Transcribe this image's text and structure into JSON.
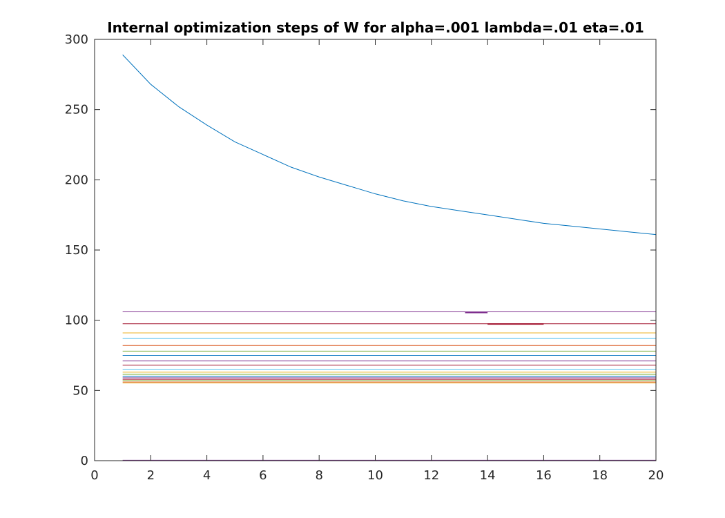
{
  "chart_data": {
    "type": "line",
    "title": "Internal optimization steps of W for alpha=.001 lambda=.01 eta=.01",
    "xlabel": "",
    "ylabel": "",
    "xlim": [
      0,
      20
    ],
    "ylim": [
      0,
      300
    ],
    "xticks": [
      0,
      2,
      4,
      6,
      8,
      10,
      12,
      14,
      16,
      18,
      20
    ],
    "yticks": [
      0,
      50,
      100,
      150,
      200,
      250,
      300
    ],
    "xtick_labels": [
      "0",
      "2",
      "4",
      "6",
      "8",
      "10",
      "12",
      "14",
      "16",
      "18",
      "20"
    ],
    "ytick_labels": [
      "0",
      "50",
      "100",
      "150",
      "200",
      "250",
      "300"
    ],
    "grid": false,
    "legend": "none",
    "x": [
      1,
      2,
      3,
      4,
      5,
      6,
      7,
      8,
      9,
      10,
      11,
      12,
      13,
      14,
      15,
      16,
      17,
      18,
      19,
      20
    ],
    "series": [
      {
        "color": "#0072bd",
        "values": [
          289,
          268,
          252,
          239,
          227,
          218,
          209,
          202,
          196,
          190,
          185,
          181,
          178,
          175,
          172,
          169,
          167,
          165,
          163,
          161
        ]
      },
      {
        "color": "#7e2f8e",
        "values": [
          106,
          106,
          106,
          106,
          106,
          106,
          106,
          106,
          106,
          106,
          106,
          106,
          106,
          106,
          106,
          106,
          106,
          106,
          106,
          106
        ]
      },
      {
        "color": "#a2142f",
        "values": [
          97.5,
          97.5,
          97.5,
          97.5,
          97.5,
          97.5,
          97.5,
          97.5,
          97.5,
          97.5,
          97.5,
          97.5,
          97.5,
          97.5,
          97.5,
          97.5,
          97.5,
          97.5,
          97.5,
          97.5
        ]
      },
      {
        "color": "#edb120",
        "values": [
          91,
          91,
          91,
          91,
          91,
          91,
          91,
          91,
          91,
          91,
          91,
          91,
          91,
          91,
          91,
          91,
          91,
          91,
          91,
          91
        ]
      },
      {
        "color": "#4dbeee",
        "values": [
          87,
          87,
          87,
          87,
          87,
          87,
          87,
          87,
          87,
          87,
          87,
          87,
          87,
          87,
          87,
          87,
          87,
          87,
          87,
          87
        ]
      },
      {
        "color": "#d95319",
        "values": [
          82,
          82,
          82,
          82,
          82,
          82,
          82,
          82,
          82,
          82,
          82,
          82,
          82,
          82,
          82,
          82,
          82,
          82,
          82,
          82
        ]
      },
      {
        "color": "#77ac30",
        "values": [
          78,
          78,
          78,
          78,
          78,
          78,
          78,
          78,
          78,
          78,
          78,
          78,
          78,
          78,
          78,
          78,
          78,
          78,
          78,
          78
        ]
      },
      {
        "color": "#0072bd",
        "values": [
          75,
          75,
          75,
          75,
          75,
          75,
          75,
          75,
          75,
          75,
          75,
          75,
          75,
          75,
          75,
          75,
          75,
          75,
          75,
          75
        ]
      },
      {
        "color": "#7e2f8e",
        "values": [
          71,
          71,
          71,
          71,
          71,
          71,
          71,
          71,
          71,
          71,
          71,
          71,
          71,
          71,
          71,
          71,
          71,
          71,
          71,
          71
        ]
      },
      {
        "color": "#a2142f",
        "values": [
          68,
          68,
          68,
          68,
          68,
          68,
          68,
          68,
          68,
          68,
          68,
          68,
          68,
          68,
          68,
          68,
          68,
          68,
          68,
          68
        ]
      },
      {
        "color": "#4dbeee",
        "values": [
          65,
          65,
          65,
          65,
          65,
          65,
          65,
          65,
          65,
          65,
          65,
          65,
          65,
          65,
          65,
          65,
          65,
          65,
          65,
          65
        ]
      },
      {
        "color": "#edb120",
        "values": [
          63,
          63,
          63,
          63,
          63,
          63,
          63,
          63,
          63,
          63,
          63,
          63,
          63,
          63,
          63,
          63,
          63,
          63,
          63,
          63
        ]
      },
      {
        "color": "#77ac30",
        "values": [
          61.5,
          61.5,
          61.5,
          61.5,
          61.5,
          61.5,
          61.5,
          61.5,
          61.5,
          61.5,
          61.5,
          61.5,
          61.5,
          61.5,
          61.5,
          61.5,
          61.5,
          61.5,
          61.5,
          61.5
        ]
      },
      {
        "color": "#0072bd",
        "values": [
          60,
          60,
          60,
          60,
          60,
          60,
          60,
          60,
          60,
          60,
          60,
          60,
          60,
          60,
          60,
          60,
          60,
          60,
          60,
          60
        ]
      },
      {
        "color": "#7e2f8e",
        "values": [
          59,
          59,
          59,
          59,
          59,
          59,
          59,
          59,
          59,
          59,
          59,
          59,
          59,
          59,
          59,
          59,
          59,
          59,
          59,
          59
        ]
      },
      {
        "color": "#a2142f",
        "values": [
          58,
          58,
          58,
          58,
          58,
          58,
          58,
          58,
          58,
          58,
          58,
          58,
          58,
          58,
          58,
          58,
          58,
          58,
          58,
          58
        ]
      },
      {
        "color": "#77ac30",
        "values": [
          57,
          57,
          57,
          57,
          57,
          57,
          57,
          57,
          57,
          57,
          57,
          57,
          57,
          57,
          57,
          57,
          57,
          57,
          57,
          57
        ]
      },
      {
        "color": "#d95319",
        "values": [
          56,
          56,
          56,
          56,
          56,
          56,
          56,
          56,
          56,
          56,
          56,
          56,
          56,
          56,
          56,
          56,
          56,
          56,
          56,
          56
        ]
      },
      {
        "color": "#edb120",
        "values": [
          55.3,
          55.3,
          55.3,
          55.3,
          55.3,
          55.3,
          55.3,
          55.3,
          55.3,
          55.3,
          55.3,
          55.3,
          55.3,
          55.3,
          55.3,
          55.3,
          55.3,
          55.3,
          55.3,
          55.3
        ]
      },
      {
        "color": "#7e2f8e",
        "values": [
          0.3,
          0.3,
          0.3,
          0.3,
          0.3,
          0.3,
          0.3,
          0.3,
          0.3,
          0.3,
          0.3,
          0.3,
          0.3,
          0.3,
          0.3,
          0.3,
          0.3,
          0.3,
          0.3,
          0.3
        ]
      }
    ],
    "segments": [
      {
        "color": "#7e2f8e",
        "x": [
          13.2,
          14.0
        ],
        "y": [
          105.5,
          105.5
        ]
      },
      {
        "color": "#a2142f",
        "x": [
          14.0,
          16.0
        ],
        "y": [
          97.3,
          97.3
        ]
      }
    ]
  }
}
